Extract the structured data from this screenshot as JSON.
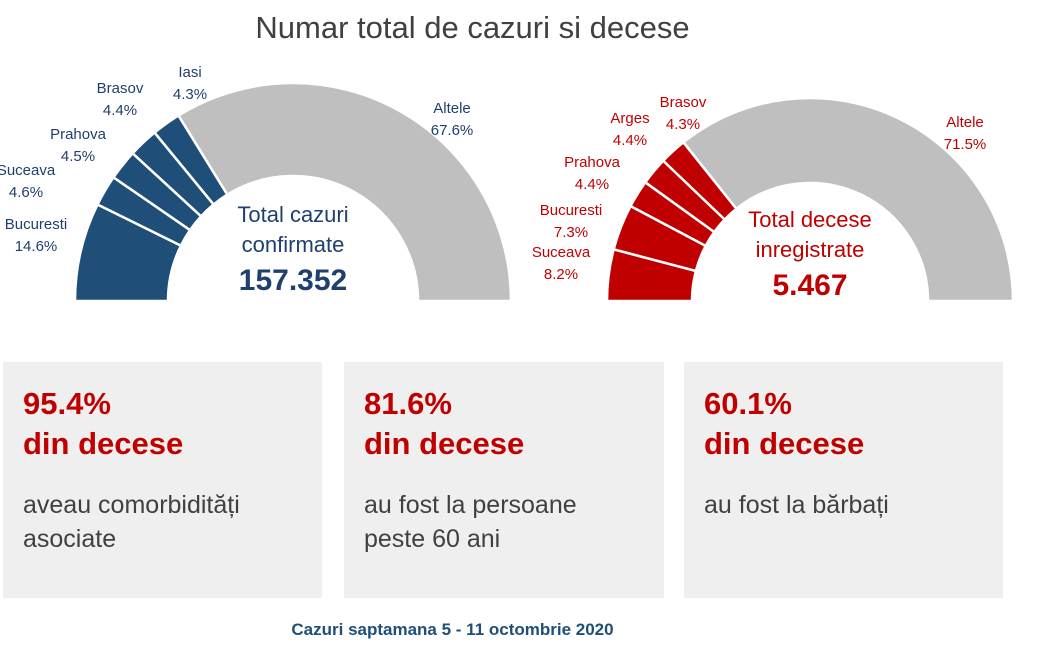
{
  "title": "Numar total de cazuri si decese",
  "chart_data": [
    {
      "type": "pie",
      "variant": "half-donut",
      "name": "cases",
      "categories": [
        "Bucuresti",
        "Suceava",
        "Prahova",
        "Brasov",
        "Iasi",
        "Altele"
      ],
      "values": [
        14.6,
        4.6,
        4.5,
        4.4,
        4.3,
        67.6
      ],
      "value_labels": [
        "14.6%",
        "4.6%",
        "4.5%",
        "4.4%",
        "4.3%",
        "67.6%"
      ],
      "colors": [
        "#1f4e79",
        "#1f4e79",
        "#1f4e79",
        "#1f4e79",
        "#1f4e79",
        "#bfbfbf"
      ],
      "center_label": "Total cazuri confirmate",
      "center_label_lines": [
        "Total cazuri",
        "confirmate"
      ],
      "center_value": "157.352"
    },
    {
      "type": "pie",
      "variant": "half-donut",
      "name": "deaths",
      "categories": [
        "Suceava",
        "Bucuresti",
        "Prahova",
        "Arges",
        "Brasov",
        "Altele"
      ],
      "values": [
        8.2,
        7.3,
        4.4,
        4.4,
        4.3,
        71.5
      ],
      "value_labels": [
        "8.2%",
        "7.3%",
        "4.4%",
        "4.4%",
        "4.3%",
        "71.5%"
      ],
      "colors": [
        "#c00000",
        "#c00000",
        "#c00000",
        "#c00000",
        "#c00000",
        "#bfbfbf"
      ],
      "center_label": "Total decese inregistrate",
      "center_label_lines": [
        "Total decese",
        "inregistrate"
      ],
      "center_value": "5.467"
    }
  ],
  "stats": [
    {
      "percent": "95.4%",
      "subject": "din decese",
      "desc_lines": [
        "aveau comorbidități",
        "asociate"
      ]
    },
    {
      "percent": "81.6%",
      "subject": "din decese",
      "desc_lines": [
        "au fost la persoane",
        "peste 60 ani"
      ]
    },
    {
      "percent": "60.1%",
      "subject": "din decese",
      "desc_lines": [
        "au fost la bărbați"
      ]
    }
  ],
  "footer": "Cazuri saptamana 5 - 11 octombrie 2020"
}
